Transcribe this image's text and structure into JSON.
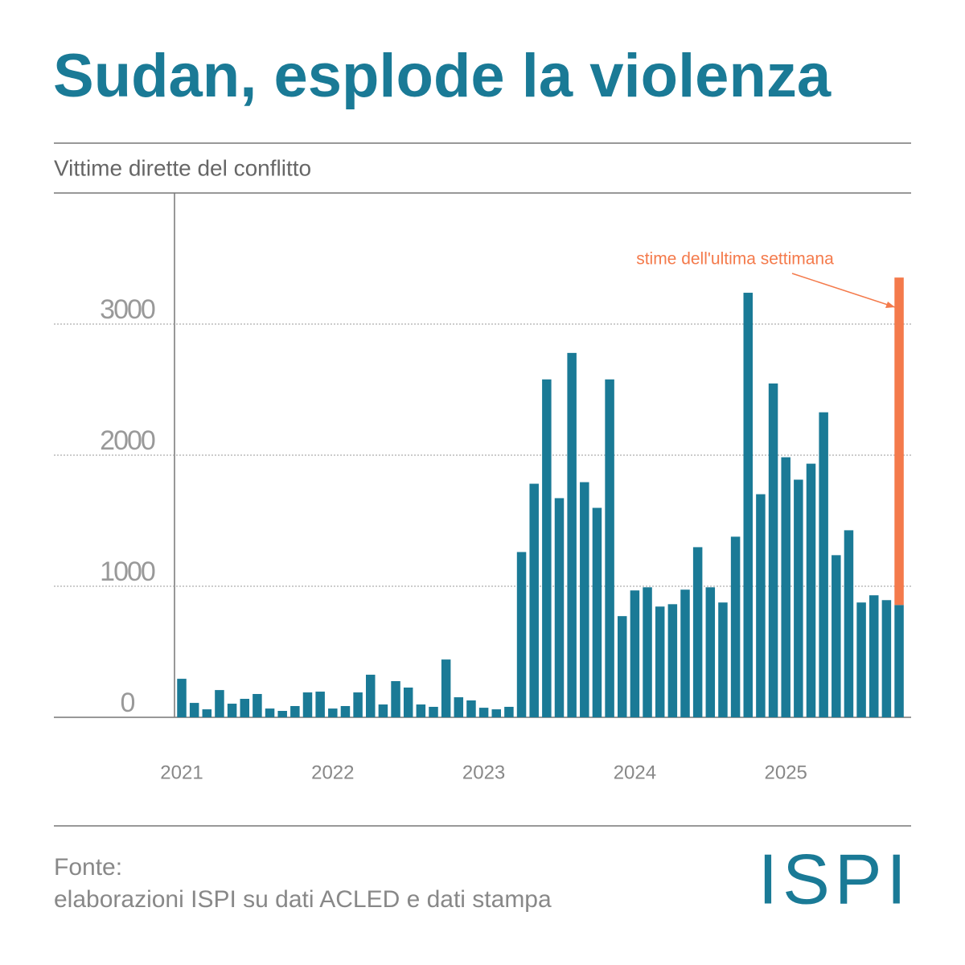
{
  "chart_data": {
    "type": "bar",
    "title": "Sudan, esplode la violenza",
    "subtitle": "Vittime dirette del conflitto",
    "categories": [
      "2021",
      null,
      null,
      null,
      null,
      null,
      null,
      null,
      null,
      null,
      null,
      null,
      "2022",
      null,
      null,
      null,
      null,
      null,
      null,
      null,
      null,
      null,
      null,
      null,
      "2023",
      null,
      null,
      null,
      null,
      null,
      null,
      null,
      null,
      null,
      null,
      null,
      "2024",
      null,
      null,
      null,
      null,
      null,
      null,
      null,
      null,
      null,
      null,
      null,
      "2025",
      null,
      null,
      null,
      null,
      null,
      null,
      null,
      null,
      null
    ],
    "series": [
      {
        "name": "Vittime",
        "color": "#1a7a96",
        "values": [
          294,
          110,
          61,
          208,
          104,
          141,
          178,
          67,
          49,
          86,
          190,
          196,
          67,
          86,
          190,
          325,
          98,
          276,
          227,
          98,
          80,
          441,
          153,
          129,
          73,
          61,
          80,
          1261,
          1782,
          2578,
          1672,
          2780,
          1794,
          1598,
          2578,
          772,
          968,
          992,
          845,
          863,
          974,
          1298,
          992,
          876,
          1378,
          3239,
          1702,
          2547,
          1984,
          1813,
          1935,
          2327,
          1237,
          1427,
          876,
          931,
          894,
          857
        ]
      },
      {
        "name": "stime dell'ultima settimana",
        "color": "#f47a4b",
        "values": [
          null,
          null,
          null,
          null,
          null,
          null,
          null,
          null,
          null,
          null,
          null,
          null,
          null,
          null,
          null,
          null,
          null,
          null,
          null,
          null,
          null,
          null,
          null,
          null,
          null,
          null,
          null,
          null,
          null,
          null,
          null,
          null,
          null,
          null,
          null,
          null,
          null,
          null,
          null,
          null,
          null,
          null,
          null,
          null,
          null,
          null,
          null,
          null,
          null,
          null,
          null,
          null,
          null,
          null,
          null,
          null,
          null,
          2498
        ]
      }
    ],
    "stacked": true,
    "ylim": [
      0,
      4000
    ],
    "yticks": [
      0,
      1000,
      2000,
      3000
    ],
    "grid": true,
    "source_title": "Fonte:",
    "source": "elaborazioni ISPI su dati ACLED e dati stampa",
    "logo": "ISPI"
  }
}
